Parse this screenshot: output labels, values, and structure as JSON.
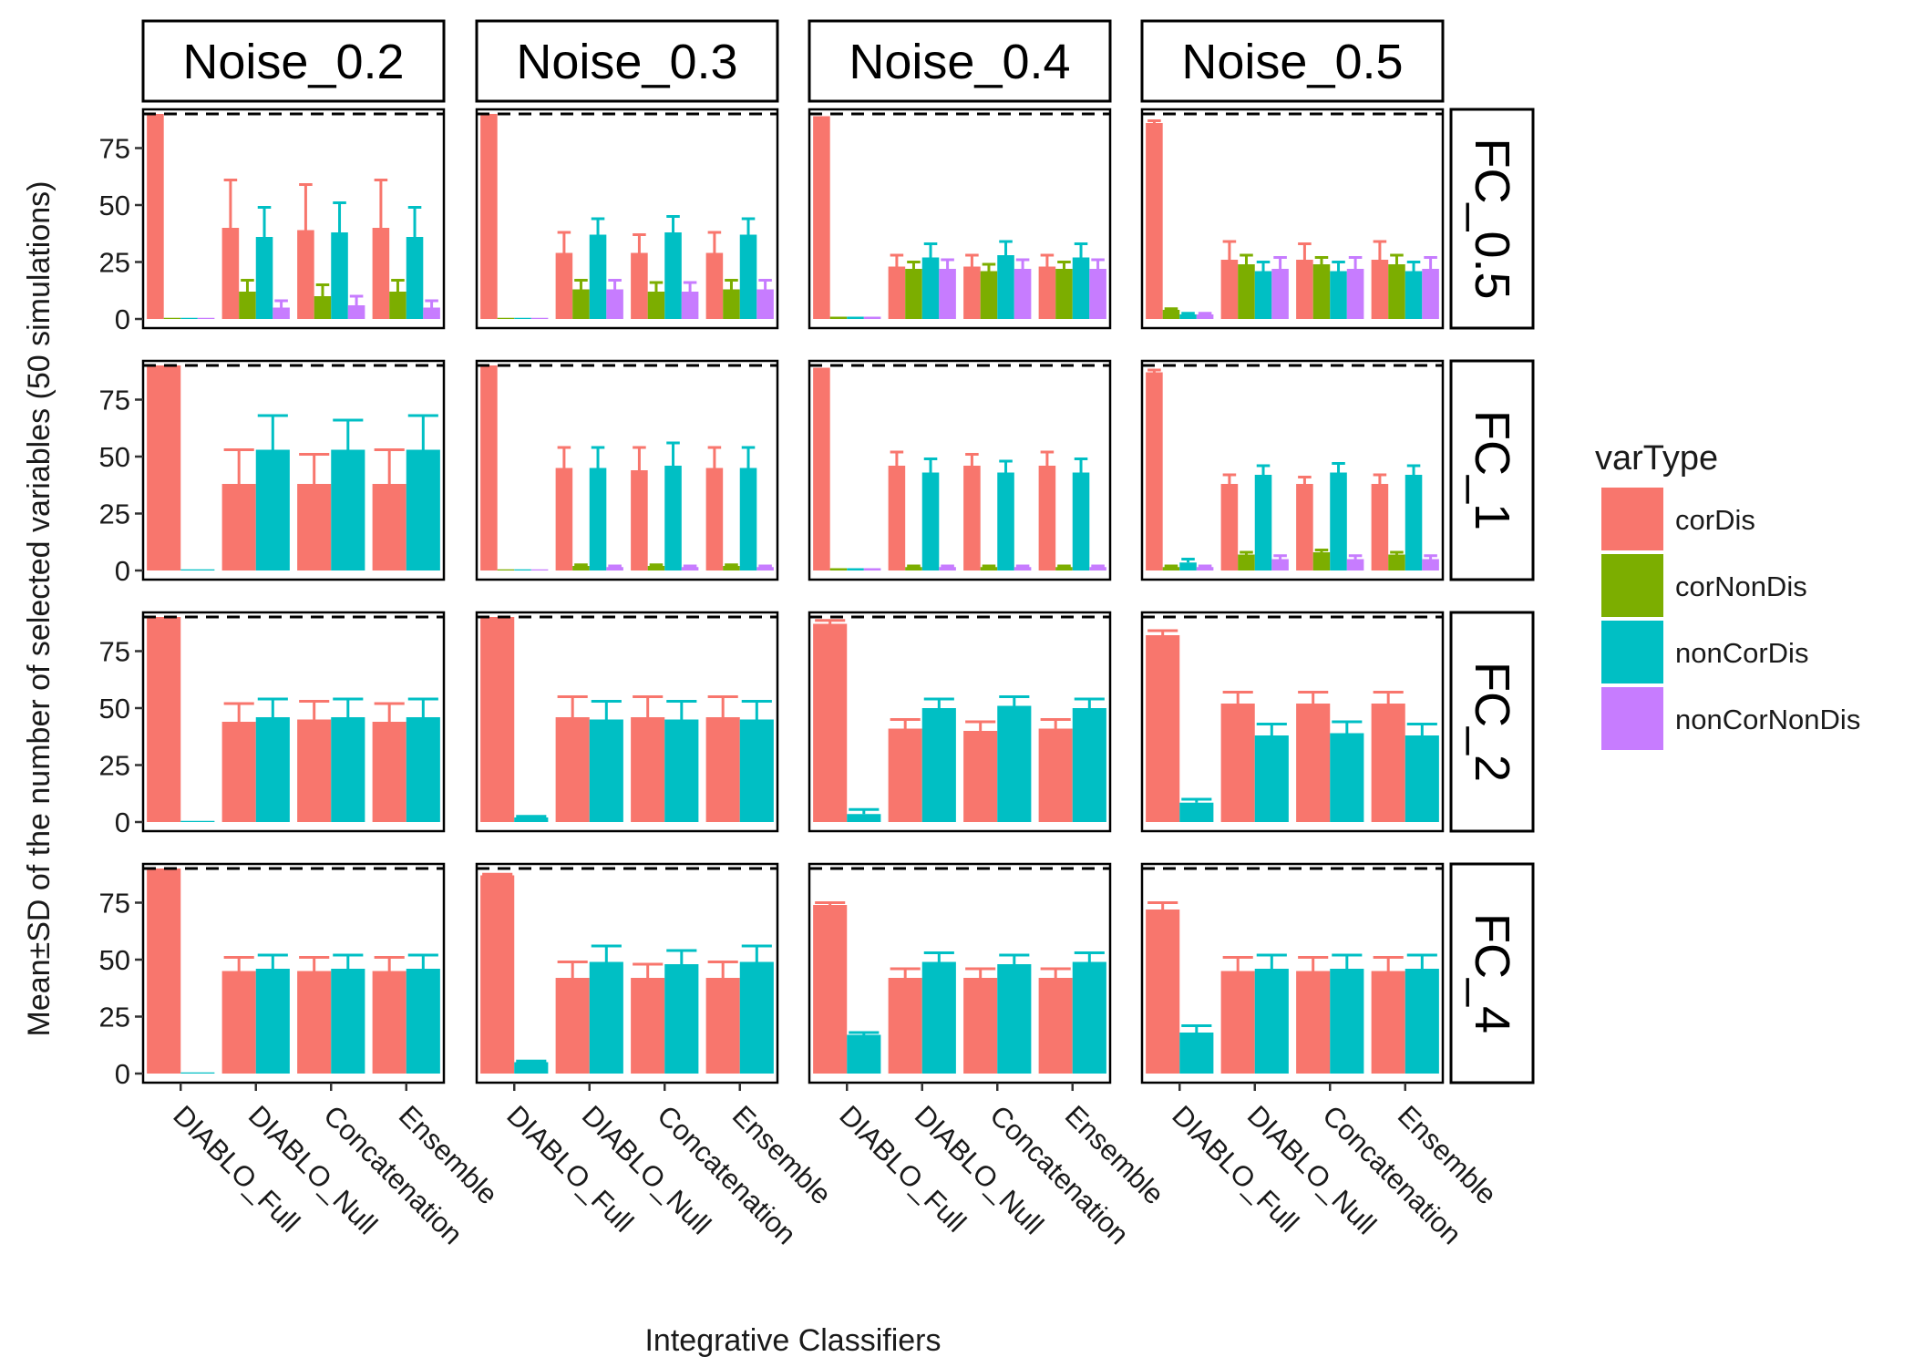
{
  "chart_data": {
    "type": "bar",
    "xlabel": "Integrative Classifiers",
    "ylabel": "Mean±SD of the number of selected variables (50 simulations)",
    "ylim": [
      -4,
      92
    ],
    "yticks": [
      0,
      25,
      50,
      75
    ],
    "reference_line": 90,
    "categories": [
      "DIABLO_Full",
      "DIABLO_Null",
      "Concatenation",
      "Ensemble"
    ],
    "columns": [
      "Noise_0.2",
      "Noise_0.3",
      "Noise_0.4",
      "Noise_0.5"
    ],
    "rows": [
      "FC_0.5",
      "FC_1",
      "FC_2",
      "FC_4"
    ],
    "legend": {
      "title": "varType",
      "position": "right",
      "items": [
        {
          "name": "corDis",
          "color": "#F8766D"
        },
        {
          "name": "corNonDis",
          "color": "#7CAE00"
        },
        {
          "name": "nonCorDis",
          "color": "#00BFC4"
        },
        {
          "name": "nonCorNonDis",
          "color": "#C77CFF"
        }
      ]
    },
    "panels": [
      {
        "row": "FC_0.5",
        "col": "Noise_0.2",
        "series": [
          {
            "name": "corDis",
            "values": [
              90,
              40,
              39,
              40
            ],
            "sd": [
              0,
              21,
              20,
              21
            ]
          },
          {
            "name": "corNonDis",
            "values": [
              0.5,
              12,
              10,
              12
            ],
            "sd": [
              0,
              5,
              5,
              5
            ]
          },
          {
            "name": "nonCorDis",
            "values": [
              0.5,
              36,
              38,
              36
            ],
            "sd": [
              0,
              13,
              13,
              13
            ]
          },
          {
            "name": "nonCorNonDis",
            "values": [
              0.5,
              5,
              6,
              5
            ],
            "sd": [
              0,
              3,
              4,
              3
            ]
          }
        ]
      },
      {
        "row": "FC_0.5",
        "col": "Noise_0.3",
        "series": [
          {
            "name": "corDis",
            "values": [
              90,
              29,
              29,
              29
            ],
            "sd": [
              0,
              9,
              8,
              9
            ]
          },
          {
            "name": "corNonDis",
            "values": [
              0.5,
              13,
              12,
              13
            ],
            "sd": [
              0,
              4,
              4,
              4
            ]
          },
          {
            "name": "nonCorDis",
            "values": [
              0.5,
              37,
              38,
              37
            ],
            "sd": [
              0,
              7,
              7,
              7
            ]
          },
          {
            "name": "nonCorNonDis",
            "values": [
              0.5,
              13,
              12,
              13
            ],
            "sd": [
              0,
              4,
              4,
              4
            ]
          }
        ]
      },
      {
        "row": "FC_0.5",
        "col": "Noise_0.4",
        "series": [
          {
            "name": "corDis",
            "values": [
              89,
              23,
              23,
              23
            ],
            "sd": [
              0,
              5,
              5,
              5
            ]
          },
          {
            "name": "corNonDis",
            "values": [
              1,
              22,
              21,
              22
            ],
            "sd": [
              0,
              3,
              3,
              3
            ]
          },
          {
            "name": "nonCorDis",
            "values": [
              1,
              27,
              28,
              27
            ],
            "sd": [
              0,
              6,
              6,
              6
            ]
          },
          {
            "name": "nonCorNonDis",
            "values": [
              1,
              22,
              22,
              22
            ],
            "sd": [
              0,
              4,
              4,
              4
            ]
          }
        ]
      },
      {
        "row": "FC_0.5",
        "col": "Noise_0.5",
        "series": [
          {
            "name": "corDis",
            "values": [
              86,
              26,
              26,
              26
            ],
            "sd": [
              1,
              8,
              7,
              8
            ]
          },
          {
            "name": "corNonDis",
            "values": [
              4,
              24,
              24,
              24
            ],
            "sd": [
              0.5,
              4,
              3,
              4
            ]
          },
          {
            "name": "nonCorDis",
            "values": [
              2,
              21,
              21,
              21
            ],
            "sd": [
              0.5,
              4,
              4,
              4
            ]
          },
          {
            "name": "nonCorNonDis",
            "values": [
              2,
              22,
              22,
              22
            ],
            "sd": [
              0.5,
              5,
              5,
              5
            ]
          }
        ]
      },
      {
        "row": "FC_1",
        "col": "Noise_0.2",
        "series": [
          {
            "name": "corDis",
            "values": [
              90,
              38,
              38,
              38
            ],
            "sd": [
              0,
              15,
              13,
              15
            ]
          },
          {
            "name": "nonCorDis",
            "values": [
              0.5,
              53,
              53,
              53
            ],
            "sd": [
              0,
              15,
              13,
              15
            ]
          }
        ]
      },
      {
        "row": "FC_1",
        "col": "Noise_0.3",
        "series": [
          {
            "name": "corDis",
            "values": [
              90,
              45,
              44,
              45
            ],
            "sd": [
              0,
              9,
              10,
              9
            ]
          },
          {
            "name": "corNonDis",
            "values": [
              0.5,
              2,
              2,
              2
            ],
            "sd": [
              0,
              0.5,
              0.5,
              0.5
            ]
          },
          {
            "name": "nonCorDis",
            "values": [
              0.5,
              45,
              46,
              45
            ],
            "sd": [
              0,
              9,
              10,
              9
            ]
          },
          {
            "name": "nonCorNonDis",
            "values": [
              0.5,
              1.5,
              1.5,
              1.5
            ],
            "sd": [
              0,
              0.5,
              0.5,
              0.5
            ]
          }
        ]
      },
      {
        "row": "FC_1",
        "col": "Noise_0.4",
        "series": [
          {
            "name": "corDis",
            "values": [
              89,
              46,
              46,
              46
            ],
            "sd": [
              0,
              6,
              5,
              6
            ]
          },
          {
            "name": "corNonDis",
            "values": [
              1,
              1.5,
              1.5,
              1.5
            ],
            "sd": [
              0,
              0.5,
              0.5,
              0.5
            ]
          },
          {
            "name": "nonCorDis",
            "values": [
              1,
              43,
              43,
              43
            ],
            "sd": [
              0,
              6,
              5,
              6
            ]
          },
          {
            "name": "nonCorNonDis",
            "values": [
              1,
              1.5,
              1.5,
              1.5
            ],
            "sd": [
              0,
              0.5,
              0.5,
              0.5
            ]
          }
        ]
      },
      {
        "row": "FC_1",
        "col": "Noise_0.5",
        "series": [
          {
            "name": "corDis",
            "values": [
              87,
              38,
              38,
              38
            ],
            "sd": [
              1,
              4,
              3,
              4
            ]
          },
          {
            "name": "corNonDis",
            "values": [
              1.5,
              7,
              8,
              7
            ],
            "sd": [
              0.5,
              1,
              1,
              1
            ]
          },
          {
            "name": "nonCorDis",
            "values": [
              3.5,
              42,
              43,
              42
            ],
            "sd": [
              1.5,
              4,
              4,
              4
            ]
          },
          {
            "name": "nonCorNonDis",
            "values": [
              1.5,
              5,
              5,
              5
            ],
            "sd": [
              0.5,
              1.5,
              1.5,
              1.5
            ]
          }
        ]
      },
      {
        "row": "FC_2",
        "col": "Noise_0.2",
        "series": [
          {
            "name": "corDis",
            "values": [
              90,
              44,
              45,
              44
            ],
            "sd": [
              0,
              8,
              8,
              8
            ]
          },
          {
            "name": "nonCorDis",
            "values": [
              0.5,
              46,
              46,
              46
            ],
            "sd": [
              0,
              8,
              8,
              8
            ]
          }
        ]
      },
      {
        "row": "FC_2",
        "col": "Noise_0.3",
        "series": [
          {
            "name": "corDis",
            "values": [
              90,
              46,
              46,
              46
            ],
            "sd": [
              0,
              9,
              9,
              9
            ]
          },
          {
            "name": "nonCorDis",
            "values": [
              2,
              45,
              45,
              45
            ],
            "sd": [
              0.5,
              8,
              8,
              8
            ]
          }
        ]
      },
      {
        "row": "FC_2",
        "col": "Noise_0.4",
        "series": [
          {
            "name": "corDis",
            "values": [
              87,
              41,
              40,
              41
            ],
            "sd": [
              1.5,
              4,
              4,
              4
            ]
          },
          {
            "name": "nonCorDis",
            "values": [
              3.5,
              50,
              51,
              50
            ],
            "sd": [
              2,
              4,
              4,
              4
            ]
          }
        ]
      },
      {
        "row": "FC_2",
        "col": "Noise_0.5",
        "series": [
          {
            "name": "corDis",
            "values": [
              82,
              52,
              52,
              52
            ],
            "sd": [
              2,
              5,
              5,
              5
            ]
          },
          {
            "name": "nonCorDis",
            "values": [
              8.5,
              38,
              39,
              38
            ],
            "sd": [
              1.5,
              5,
              5,
              5
            ]
          }
        ]
      },
      {
        "row": "FC_4",
        "col": "Noise_0.2",
        "series": [
          {
            "name": "corDis",
            "values": [
              90,
              45,
              45,
              45
            ],
            "sd": [
              0,
              6,
              6,
              6
            ]
          },
          {
            "name": "nonCorDis",
            "values": [
              0.5,
              46,
              46,
              46
            ],
            "sd": [
              0,
              6,
              6,
              6
            ]
          }
        ]
      },
      {
        "row": "FC_4",
        "col": "Noise_0.3",
        "series": [
          {
            "name": "corDis",
            "values": [
              87,
              42,
              42,
              42
            ],
            "sd": [
              0.5,
              7,
              6,
              7
            ]
          },
          {
            "name": "nonCorDis",
            "values": [
              5,
              49,
              48,
              49
            ],
            "sd": [
              0.5,
              7,
              6,
              7
            ]
          }
        ]
      },
      {
        "row": "FC_4",
        "col": "Noise_0.4",
        "series": [
          {
            "name": "corDis",
            "values": [
              74,
              42,
              42,
              42
            ],
            "sd": [
              1,
              4,
              4,
              4
            ]
          },
          {
            "name": "nonCorDis",
            "values": [
              17,
              49,
              48,
              49
            ],
            "sd": [
              1,
              4,
              4,
              4
            ]
          }
        ]
      },
      {
        "row": "FC_4",
        "col": "Noise_0.5",
        "series": [
          {
            "name": "corDis",
            "values": [
              72,
              45,
              45,
              45
            ],
            "sd": [
              3,
              6,
              6,
              6
            ]
          },
          {
            "name": "nonCorDis",
            "values": [
              18,
              46,
              46,
              46
            ],
            "sd": [
              3,
              6,
              6,
              6
            ]
          }
        ]
      }
    ]
  }
}
